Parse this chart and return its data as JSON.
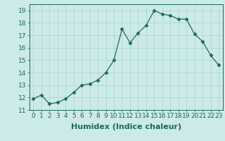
{
  "x": [
    0,
    1,
    2,
    3,
    4,
    5,
    6,
    7,
    8,
    9,
    10,
    11,
    12,
    13,
    14,
    15,
    16,
    17,
    18,
    19,
    20,
    21,
    22,
    23
  ],
  "y": [
    11.9,
    12.2,
    11.5,
    11.6,
    11.9,
    12.4,
    13.0,
    13.1,
    13.4,
    14.0,
    15.0,
    17.5,
    16.4,
    17.2,
    17.8,
    19.0,
    18.7,
    18.6,
    18.3,
    18.3,
    17.1,
    16.5,
    15.4,
    14.6
  ],
  "xlabel": "Humidex (Indice chaleur)",
  "ylim": [
    11,
    19.5
  ],
  "xlim": [
    -0.5,
    23.5
  ],
  "yticks": [
    11,
    12,
    13,
    14,
    15,
    16,
    17,
    18,
    19
  ],
  "xticks": [
    0,
    1,
    2,
    3,
    4,
    5,
    6,
    7,
    8,
    9,
    10,
    11,
    12,
    13,
    14,
    15,
    16,
    17,
    18,
    19,
    20,
    21,
    22,
    23
  ],
  "line_color": "#1a6b5a",
  "marker": "D",
  "marker_size": 2.5,
  "bg_color": "#cceae7",
  "grid_color": "#aad4d0",
  "axis_color": "#1a6b5a",
  "tick_label_fontsize": 6.5,
  "xlabel_fontsize": 8.0
}
